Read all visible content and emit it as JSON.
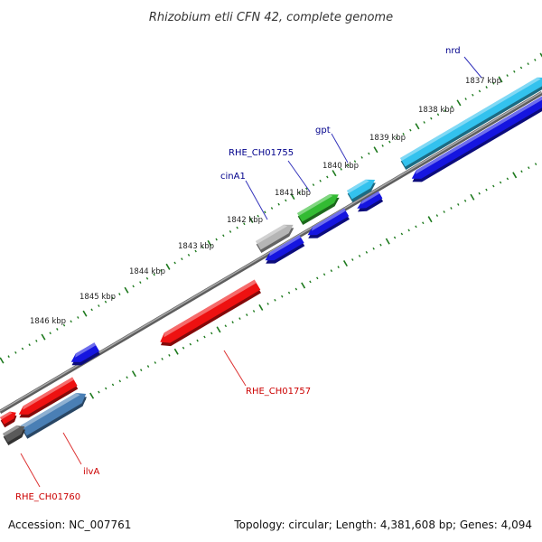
{
  "title": "Rhizobium etli CFN 42, complete genome",
  "accession": "Accession: NC_007761",
  "summary": "Topology: circular; Length: 4,381,608 bp; Genes: 4,094",
  "kbp_labels": [
    "1837 kbp",
    "1838 kbp",
    "1839 kbp",
    "1840 kbp",
    "1841 kbp",
    "1842 kbp",
    "1843 kbp",
    "1844 kbp",
    "1845 kbp",
    "1846 kbp"
  ],
  "gene_labels": {
    "nrd": "nrd",
    "gpt": "gpt",
    "rhe_ch01755": "RHE_CH01755",
    "cina1": "cinA1",
    "rhe_ch01757": "RHE_CH01757",
    "ilva": "ilvA",
    "rhe_ch01760": "RHE_CH01760"
  },
  "colors": {
    "backbone": "#808080",
    "tick": "#1e7a1e",
    "forward_label": "#00008b",
    "reverse_label": "#cc0000",
    "blue": "#1515e0",
    "cyan": "#33c2ee",
    "red": "#ee1111",
    "green": "#33bb33",
    "silver": "#b5b5b5",
    "steel": "#4a7fb5",
    "dark_gray": "#5a5a5a"
  }
}
